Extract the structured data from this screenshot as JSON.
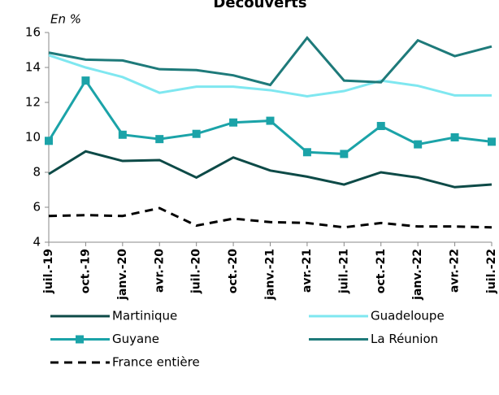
{
  "chart_data": {
    "type": "line",
    "title": "Découverts",
    "subtitle": "En %",
    "categories": [
      "juil.-19",
      "oct.-19",
      "janv.-20",
      "avr.-20",
      "juil.-20",
      "oct.-20",
      "janv.-21",
      "avr.-21",
      "juil.-21",
      "oct.-21",
      "janv.-22",
      "avr.-22",
      "juil.-22"
    ],
    "ylim": [
      4,
      16
    ],
    "yticks": [
      4,
      6,
      8,
      10,
      12,
      14,
      16
    ],
    "series": [
      {
        "name": "Martinique",
        "color": "#0d4a47",
        "values": [
          7.9,
          9.2,
          8.65,
          8.7,
          7.7,
          8.85,
          8.1,
          7.75,
          7.3,
          8.0,
          7.7,
          7.15,
          7.3
        ]
      },
      {
        "name": "Guadeloupe",
        "color": "#7fe7f0",
        "values": [
          14.7,
          14.0,
          13.45,
          12.55,
          12.9,
          12.9,
          12.7,
          12.35,
          12.65,
          13.25,
          12.95,
          12.4,
          12.4
        ]
      },
      {
        "name": "Guyane",
        "color": "#1ba3a8",
        "marker": "square",
        "values": [
          9.8,
          13.25,
          10.15,
          9.9,
          10.2,
          10.85,
          10.95,
          9.15,
          9.05,
          10.65,
          9.6,
          10.0,
          9.75
        ]
      },
      {
        "name": "La Réunion",
        "color": "#1e7a7a",
        "values": [
          14.85,
          14.45,
          14.4,
          13.9,
          13.85,
          13.55,
          13.0,
          15.7,
          13.25,
          13.15,
          15.55,
          14.65,
          15.2
        ]
      },
      {
        "name": "France entière",
        "color": "#000000",
        "dash": true,
        "values": [
          5.5,
          5.55,
          5.5,
          5.95,
          4.95,
          5.35,
          5.15,
          5.1,
          4.85,
          5.1,
          4.9,
          4.9,
          4.85
        ]
      }
    ]
  }
}
